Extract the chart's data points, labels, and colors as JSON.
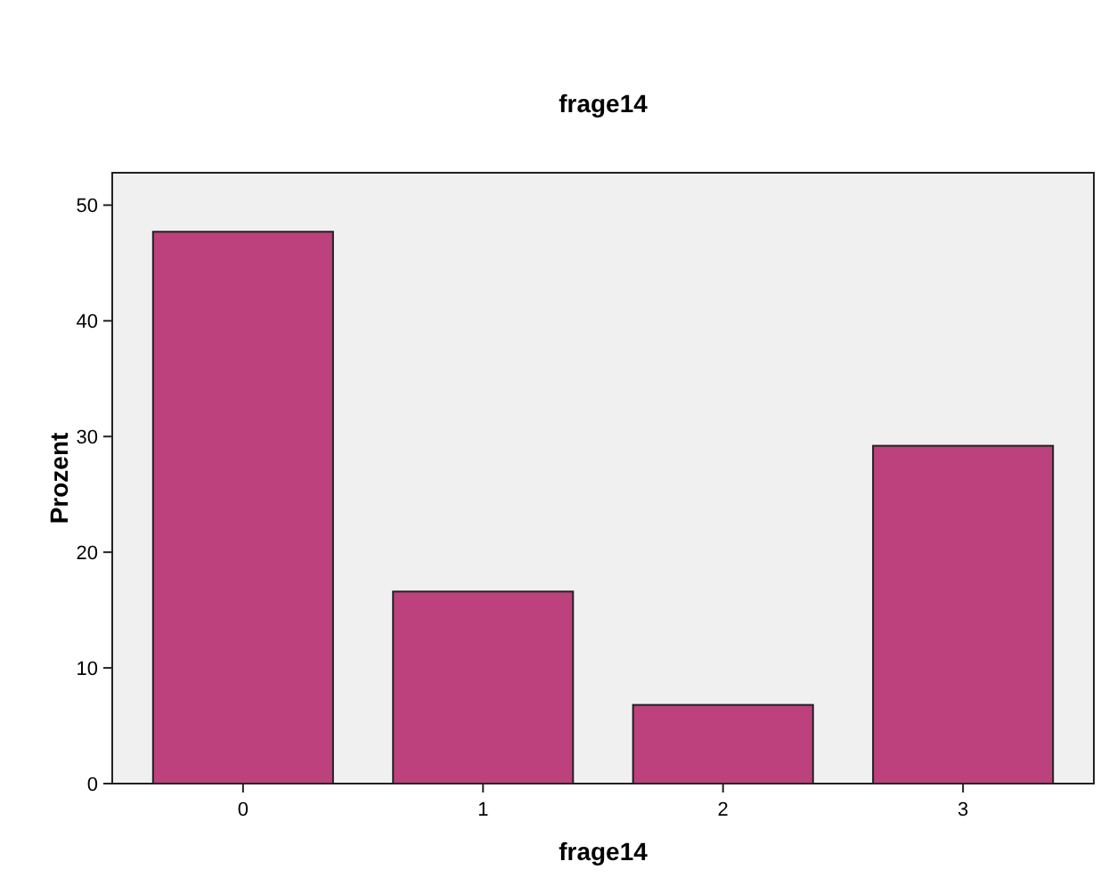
{
  "chart_data": {
    "type": "bar",
    "title": "frage14",
    "xlabel": "frage14",
    "ylabel": "Prozent",
    "categories": [
      "0",
      "1",
      "2",
      "3"
    ],
    "values": [
      47.7,
      16.6,
      6.8,
      29.2
    ],
    "color": "#bd417c",
    "ylim": [
      0,
      52.8
    ],
    "yticks": [
      0,
      10,
      20,
      30,
      40,
      50
    ],
    "grid": false
  }
}
